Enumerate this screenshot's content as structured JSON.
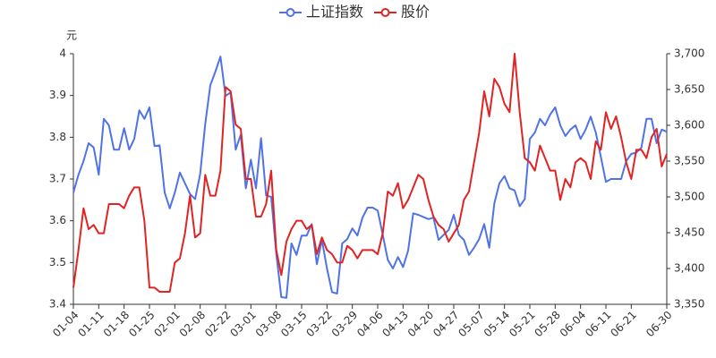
{
  "chart_data": {
    "type": "line",
    "y_label": "元",
    "categories": [
      "01-04",
      null,
      null,
      null,
      null,
      "01-11",
      null,
      null,
      null,
      null,
      "01-18",
      null,
      null,
      null,
      null,
      "01-25",
      null,
      null,
      null,
      null,
      "02-01",
      null,
      null,
      null,
      null,
      "02-08",
      null,
      null,
      null,
      null,
      "02-22",
      null,
      null,
      null,
      null,
      "03-01",
      null,
      null,
      null,
      null,
      "03-08",
      null,
      null,
      null,
      null,
      "03-15",
      null,
      null,
      null,
      null,
      "03-22",
      null,
      null,
      null,
      null,
      "03-29",
      null,
      null,
      null,
      null,
      "04-06",
      null,
      null,
      null,
      null,
      "04-13",
      null,
      null,
      null,
      null,
      "04-20",
      null,
      null,
      null,
      null,
      "04-27",
      null,
      null,
      null,
      null,
      "05-07",
      null,
      null,
      null,
      null,
      "05-14",
      null,
      null,
      null,
      null,
      "05-21",
      null,
      null,
      null,
      null,
      "05-28",
      null,
      null,
      null,
      null,
      "06-04",
      null,
      null,
      null,
      null,
      "06-11",
      null,
      null,
      null,
      null,
      "06-21",
      null,
      null,
      null,
      null,
      null,
      null,
      "06-30"
    ],
    "series": [
      {
        "name": "上证指数",
        "color": "#4f73e6",
        "axis": "y2",
        "values": [
          3506,
          3531,
          3550,
          3575,
          3569,
          3531,
          3609,
          3600,
          3566,
          3566,
          3596,
          3566,
          3581,
          3621,
          3609,
          3625,
          3571,
          3572,
          3506,
          3484,
          3506,
          3534,
          3519,
          3504,
          3497,
          3532,
          3602,
          3656,
          3675,
          3696,
          3641,
          3646,
          3566,
          3587,
          3512,
          3552,
          3512,
          3582,
          3502,
          3500,
          3421,
          3360,
          3359,
          3435,
          3419,
          3446,
          3446,
          3462,
          3406,
          3440,
          3400,
          3367,
          3365,
          3435,
          3441,
          3456,
          3446,
          3471,
          3485,
          3485,
          3481,
          3447,
          3412,
          3400,
          3416,
          3402,
          3425,
          3477,
          3475,
          3472,
          3469,
          3471,
          3440,
          3447,
          3454,
          3475,
          3447,
          3440,
          3419,
          3429,
          3441,
          3462,
          3429,
          3491,
          3519,
          3529,
          3512,
          3509,
          3487,
          3497,
          3581,
          3590,
          3609,
          3600,
          3615,
          3625,
          3600,
          3585,
          3594,
          3600,
          3581,
          3594,
          3612,
          3590,
          3556,
          3521,
          3525,
          3525,
          3525,
          3550,
          3560,
          3562,
          3569,
          3609,
          3609,
          3575,
          3594,
          3591
        ]
      },
      {
        "name": "股价",
        "color": "#e02424",
        "axis": "y",
        "values": [
          3.44,
          3.53,
          3.63,
          3.58,
          3.59,
          3.57,
          3.57,
          3.64,
          3.64,
          3.64,
          3.63,
          3.66,
          3.68,
          3.68,
          3.6,
          3.44,
          3.44,
          3.43,
          3.43,
          3.43,
          3.5,
          3.51,
          3.57,
          3.66,
          3.56,
          3.57,
          3.71,
          3.66,
          3.66,
          3.72,
          3.92,
          3.91,
          3.83,
          3.82,
          3.7,
          3.7,
          3.61,
          3.61,
          3.64,
          3.72,
          3.53,
          3.47,
          3.55,
          3.58,
          3.6,
          3.6,
          3.58,
          3.59,
          3.52,
          3.56,
          3.53,
          3.52,
          3.5,
          3.5,
          3.54,
          3.53,
          3.51,
          3.53,
          3.53,
          3.53,
          3.52,
          3.57,
          3.67,
          3.66,
          3.69,
          3.63,
          3.65,
          3.68,
          3.71,
          3.7,
          3.65,
          3.61,
          3.59,
          3.58,
          3.55,
          3.57,
          3.59,
          3.65,
          3.67,
          3.74,
          3.81,
          3.91,
          3.85,
          3.94,
          3.92,
          3.88,
          3.86,
          4.0,
          3.86,
          3.75,
          3.74,
          3.72,
          3.78,
          3.75,
          3.72,
          3.72,
          3.65,
          3.7,
          3.68,
          3.74,
          3.75,
          3.74,
          3.7,
          3.79,
          3.77,
          3.86,
          3.82,
          3.85,
          3.8,
          3.74,
          3.7,
          3.77,
          3.77,
          3.75,
          3.8,
          3.82,
          3.73,
          3.76
        ]
      }
    ],
    "ylim": [
      3.4,
      4
    ],
    "yticks": [
      3.4,
      3.5,
      3.6,
      3.7,
      3.8,
      3.9,
      4
    ],
    "y2lim": [
      3350,
      3700
    ],
    "y2ticks": [
      {
        "value": 3350,
        "label": "3,350"
      },
      {
        "value": 3400,
        "label": "3,400"
      },
      {
        "value": 3450,
        "label": "3,450"
      },
      {
        "value": 3500,
        "label": "3,500"
      },
      {
        "value": 3550,
        "label": "3,550"
      },
      {
        "value": 3600,
        "label": "3,600"
      },
      {
        "value": 3650,
        "label": "3,650"
      },
      {
        "value": 3700,
        "label": "3,700"
      }
    ],
    "grid": false,
    "legend": "top"
  }
}
